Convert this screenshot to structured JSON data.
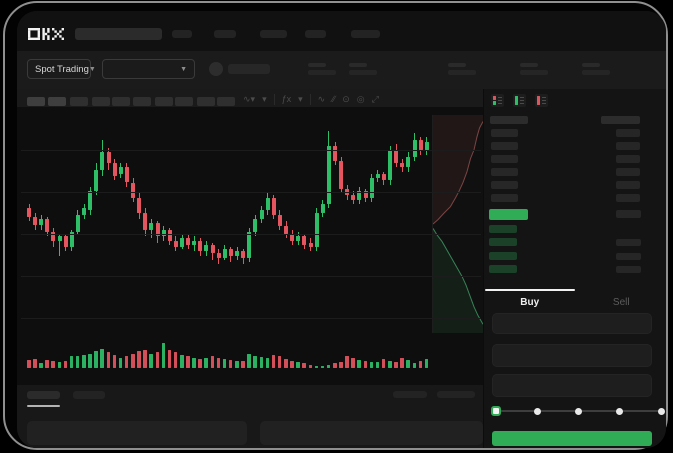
{
  "brand": {
    "logo_alt": "OKX"
  },
  "market_bar": {
    "market_selector": "Spot Trading"
  },
  "toolbar": {
    "icons": [
      {
        "name": "chart-style-icon",
        "glyph": "∿▾"
      },
      {
        "name": "timeframe-icon",
        "glyph": "▾"
      },
      {
        "sep": true
      },
      {
        "name": "indicators-icon",
        "glyph": "ƒx"
      },
      {
        "name": "compare-icon",
        "glyph": "▾"
      },
      {
        "sep": true
      },
      {
        "name": "line-tool-icon",
        "glyph": "∿"
      },
      {
        "name": "draw-tool-icon",
        "glyph": "∕∕"
      },
      {
        "name": "snapshot-icon",
        "glyph": "⊙"
      },
      {
        "name": "settings-icon",
        "glyph": "◎"
      },
      {
        "name": "fullscreen-icon",
        "glyph": "⤢"
      }
    ]
  },
  "order_book": {
    "view_icons": [
      "combined-book-icon",
      "bids-only-icon",
      "asks-only-icon"
    ],
    "ask_rows": 6,
    "current_price_row": {
      "highlighted": true,
      "color": "green"
    },
    "bid_rows": [
      {
        "right": false
      },
      {
        "right": true
      },
      {
        "right": true
      },
      {
        "right": true
      }
    ],
    "side_tabs": {
      "buy": "Buy",
      "sell": "Sell"
    }
  },
  "trade_form": {
    "fields": 3,
    "slider": {
      "stops": 5,
      "selected_index": 0
    }
  },
  "colors": {
    "up": "#2FBE68",
    "down": "#E4555F",
    "accent_green": "#2FAC55",
    "bid_row": "#1B4129",
    "placeholder": "#2B2B2B"
  },
  "chart_data": {
    "type": "candlestick",
    "title": "",
    "xlabel": "",
    "ylabel": "",
    "y_scale_note": "normalized price 0-100 (no axis labels visible)",
    "grid": "faint horizontal lines",
    "candles": {
      "format": "[open, close, low, high]",
      "values": [
        [
          58,
          54,
          52,
          60
        ],
        [
          54,
          50,
          48,
          56
        ],
        [
          50,
          53,
          48,
          55
        ],
        [
          53,
          47,
          45,
          54
        ],
        [
          47,
          43,
          40,
          49
        ],
        [
          43,
          45,
          36,
          46
        ],
        [
          45,
          40,
          38,
          46
        ],
        [
          40,
          47,
          38,
          48
        ],
        [
          47,
          55,
          46,
          57
        ],
        [
          55,
          58,
          53,
          60
        ],
        [
          57,
          66,
          55,
          68
        ],
        [
          66,
          76,
          64,
          79
        ],
        [
          76,
          84,
          73,
          90
        ],
        [
          84,
          79,
          76,
          86
        ],
        [
          79,
          73,
          71,
          81
        ],
        [
          74,
          77,
          72,
          79
        ],
        [
          77,
          70,
          68,
          79
        ],
        [
          70,
          63,
          61,
          72
        ],
        [
          63,
          56,
          53,
          65
        ],
        [
          56,
          48,
          45,
          58
        ],
        [
          48,
          51,
          44,
          53
        ],
        [
          51,
          45,
          42,
          52
        ],
        [
          45,
          48,
          43,
          50
        ],
        [
          48,
          43,
          41,
          49
        ],
        [
          43,
          40,
          38,
          45
        ],
        [
          40,
          44,
          39,
          46
        ],
        [
          44,
          41,
          39,
          46
        ],
        [
          41,
          43,
          38,
          45
        ],
        [
          43,
          38,
          36,
          44
        ],
        [
          38,
          41,
          36,
          43
        ],
        [
          41,
          37,
          34,
          42
        ],
        [
          37,
          35,
          32,
          39
        ],
        [
          35,
          39,
          34,
          41
        ],
        [
          39,
          36,
          33,
          40
        ],
        [
          36,
          38,
          34,
          40
        ],
        [
          38,
          35,
          32,
          39
        ],
        [
          35,
          47,
          33,
          49
        ],
        [
          47,
          53,
          45,
          55
        ],
        [
          53,
          57,
          51,
          59
        ],
        [
          57,
          63,
          55,
          65
        ],
        [
          63,
          55,
          53,
          64
        ],
        [
          55,
          50,
          48,
          57
        ],
        [
          50,
          46,
          44,
          52
        ],
        [
          46,
          43,
          41,
          48
        ],
        [
          43,
          45,
          41,
          47
        ],
        [
          45,
          41,
          39,
          46
        ],
        [
          42,
          40,
          38,
          44
        ],
        [
          40,
          56,
          38,
          58
        ],
        [
          56,
          60,
          54,
          62
        ],
        [
          60,
          87,
          58,
          94
        ],
        [
          87,
          80,
          78,
          89
        ],
        [
          80,
          67,
          65,
          82
        ],
        [
          67,
          64,
          62,
          69
        ],
        [
          64,
          62,
          60,
          66
        ],
        [
          62,
          66,
          60,
          68
        ],
        [
          66,
          63,
          61,
          67
        ],
        [
          63,
          72,
          61,
          74
        ],
        [
          72,
          74,
          70,
          76
        ],
        [
          74,
          71,
          69,
          75
        ],
        [
          71,
          85,
          69,
          87
        ],
        [
          85,
          79,
          77,
          88
        ],
        [
          79,
          77,
          75,
          81
        ],
        [
          77,
          82,
          75,
          84
        ],
        [
          82,
          90,
          80,
          93
        ],
        [
          90,
          85,
          83,
          91
        ],
        [
          85,
          89,
          83,
          91
        ]
      ]
    },
    "volume": {
      "color_rule": "green if close >= open else red",
      "values": [
        30,
        35,
        20,
        32,
        28,
        22,
        26,
        45,
        45,
        50,
        55,
        65,
        75,
        60,
        50,
        40,
        45,
        55,
        65,
        70,
        55,
        60,
        95,
        70,
        60,
        50,
        45,
        40,
        35,
        38,
        45,
        40,
        35,
        30,
        28,
        26,
        55,
        48,
        42,
        38,
        50,
        45,
        35,
        28,
        22,
        20,
        12,
        9,
        8,
        11,
        18,
        25,
        45,
        38,
        30,
        26,
        22,
        24,
        35,
        28,
        22,
        40,
        32,
        20,
        26,
        34
      ]
    },
    "depth": {
      "note": "mini depth profile right of candles; x = cumulative size fraction, y = fraction from top",
      "asks": [
        [
          1.0,
          0.03
        ],
        [
          0.93,
          0.06
        ],
        [
          0.88,
          0.1
        ],
        [
          0.82,
          0.16
        ],
        [
          0.75,
          0.2
        ],
        [
          0.68,
          0.26
        ],
        [
          0.6,
          0.31
        ],
        [
          0.52,
          0.35
        ],
        [
          0.45,
          0.38
        ],
        [
          0.35,
          0.42
        ],
        [
          0.22,
          0.45
        ],
        [
          0.1,
          0.48
        ],
        [
          0.0,
          0.5
        ]
      ],
      "bids": [
        [
          0.0,
          0.52
        ],
        [
          0.08,
          0.55
        ],
        [
          0.18,
          0.58
        ],
        [
          0.28,
          0.62
        ],
        [
          0.38,
          0.66
        ],
        [
          0.48,
          0.7
        ],
        [
          0.58,
          0.74
        ],
        [
          0.66,
          0.78
        ],
        [
          0.74,
          0.83
        ],
        [
          0.82,
          0.88
        ],
        [
          0.9,
          0.92
        ],
        [
          1.0,
          0.96
        ]
      ]
    }
  }
}
